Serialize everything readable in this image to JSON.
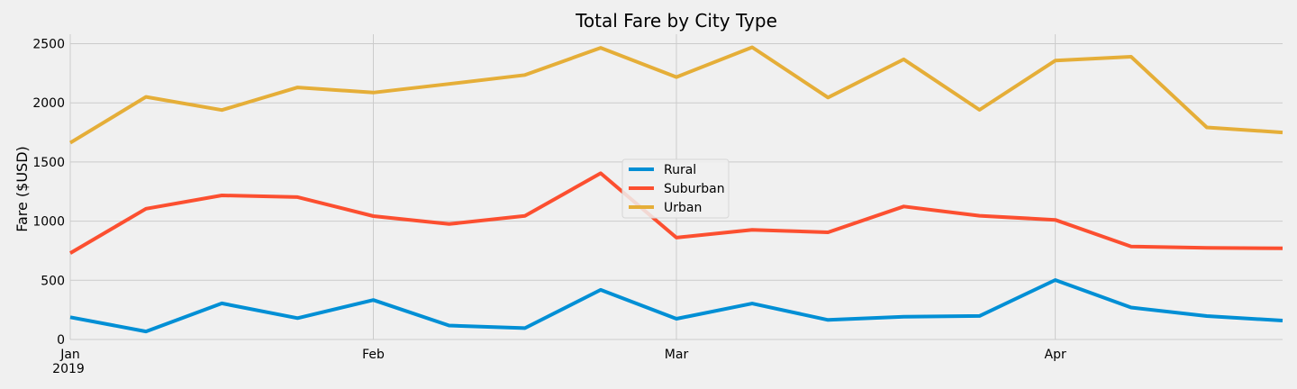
{
  "chart_data": {
    "type": "line",
    "title": "Total Fare by City Type",
    "xlabel": "",
    "ylabel": "Fare ($USD)",
    "x": [
      "2019-01-06",
      "2019-01-13",
      "2019-01-20",
      "2019-01-27",
      "2019-02-03",
      "2019-02-10",
      "2019-02-17",
      "2019-02-24",
      "2019-03-03",
      "2019-03-10",
      "2019-03-17",
      "2019-03-24",
      "2019-03-31",
      "2019-04-07",
      "2019-04-14",
      "2019-04-21",
      "2019-04-28"
    ],
    "x_range": [
      "2019-01-06",
      "2019-04-28"
    ],
    "xticks": [
      {
        "date": "2019-01-06",
        "label": "Jan",
        "sublabel": "2019"
      },
      {
        "date": "2019-02-03",
        "label": "Feb",
        "sublabel": ""
      },
      {
        "date": "2019-03-03",
        "label": "Mar",
        "sublabel": ""
      },
      {
        "date": "2019-04-07",
        "label": "Apr",
        "sublabel": ""
      }
    ],
    "ylim": [
      0,
      2580
    ],
    "yticks": [
      0,
      500,
      1000,
      1500,
      2000,
      2500
    ],
    "grid": true,
    "legend_position": "center",
    "series": [
      {
        "name": "Rural",
        "color": "#008fd5",
        "values": [
          188,
          68,
          305,
          180,
          333,
          118,
          96,
          419,
          175,
          304,
          165,
          192,
          199,
          502,
          270,
          198,
          160
        ]
      },
      {
        "name": "Suburban",
        "color": "#fc4f30",
        "values": [
          730,
          1105,
          1218,
          1203,
          1043,
          976,
          1045,
          1405,
          861,
          927,
          906,
          1124,
          1046,
          1011,
          786,
          774,
          770
        ]
      },
      {
        "name": "Urban",
        "color": "#e5ae38",
        "values": [
          1662,
          2050,
          1939,
          2130,
          2087,
          2160,
          2235,
          2465,
          2218,
          2470,
          2045,
          2368,
          1941,
          2357,
          2390,
          1792,
          1750
        ]
      }
    ]
  }
}
